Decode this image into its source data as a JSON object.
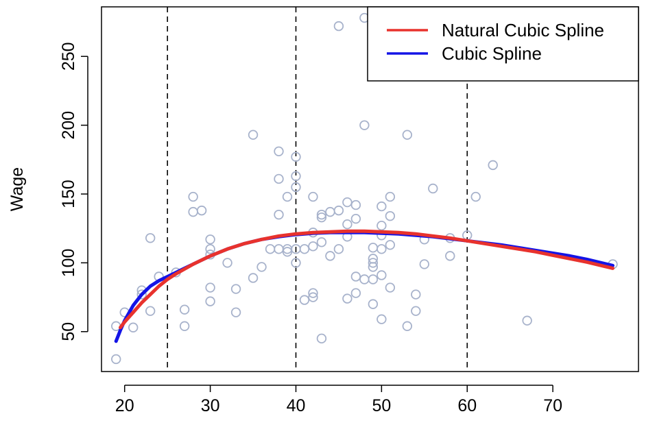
{
  "chart_data": {
    "type": "scatter",
    "title": "",
    "xlabel": "",
    "ylabel": "Wage",
    "xlim": [
      17.3,
      80
    ],
    "ylim": [
      21,
      286
    ],
    "x_ticks": [
      20,
      30,
      40,
      50,
      60,
      70
    ],
    "y_ticks": [
      50,
      100,
      150,
      200,
      250
    ],
    "knots": [
      25,
      40,
      60
    ],
    "grid": false,
    "legend_position": "top-right",
    "colors": {
      "points": "#a7b2cb",
      "natural_cubic_spline": "#e8322d",
      "cubic_spline": "#1414e6",
      "knot_lines": "#000000"
    },
    "points": [
      [
        19,
        30
      ],
      [
        19,
        54
      ],
      [
        20,
        64
      ],
      [
        21,
        53
      ],
      [
        22,
        80
      ],
      [
        22,
        77
      ],
      [
        23,
        65
      ],
      [
        23,
        118
      ],
      [
        24,
        90
      ],
      [
        26,
        93
      ],
      [
        27,
        66
      ],
      [
        27,
        54
      ],
      [
        28,
        148
      ],
      [
        28,
        137
      ],
      [
        29,
        138
      ],
      [
        30,
        117
      ],
      [
        30,
        110
      ],
      [
        30,
        106
      ],
      [
        30,
        82
      ],
      [
        30,
        72
      ],
      [
        32,
        100
      ],
      [
        33,
        81
      ],
      [
        33,
        64
      ],
      [
        35,
        193
      ],
      [
        35,
        89
      ],
      [
        36,
        97
      ],
      [
        37,
        110
      ],
      [
        38,
        181
      ],
      [
        38,
        161
      ],
      [
        38,
        135
      ],
      [
        38,
        110
      ],
      [
        39,
        148
      ],
      [
        39,
        110
      ],
      [
        39,
        108
      ],
      [
        40,
        177
      ],
      [
        40,
        163
      ],
      [
        40,
        155
      ],
      [
        40,
        110
      ],
      [
        40,
        100
      ],
      [
        41,
        110
      ],
      [
        41,
        73
      ],
      [
        42,
        148
      ],
      [
        42,
        122
      ],
      [
        42,
        112
      ],
      [
        42,
        78
      ],
      [
        42,
        75
      ],
      [
        43,
        135
      ],
      [
        43,
        133
      ],
      [
        43,
        115
      ],
      [
        43,
        45
      ],
      [
        44,
        137
      ],
      [
        44,
        105
      ],
      [
        45,
        272
      ],
      [
        45,
        138
      ],
      [
        45,
        110
      ],
      [
        46,
        144
      ],
      [
        46,
        128
      ],
      [
        46,
        119
      ],
      [
        46,
        74
      ],
      [
        47,
        142
      ],
      [
        47,
        132
      ],
      [
        47,
        90
      ],
      [
        47,
        78
      ],
      [
        48,
        278
      ],
      [
        48,
        200
      ],
      [
        48,
        88
      ],
      [
        49,
        111
      ],
      [
        49,
        103
      ],
      [
        49,
        100
      ],
      [
        49,
        97
      ],
      [
        49,
        88
      ],
      [
        49,
        70
      ],
      [
        50,
        141
      ],
      [
        50,
        127
      ],
      [
        50,
        120
      ],
      [
        50,
        110
      ],
      [
        50,
        91
      ],
      [
        50,
        59
      ],
      [
        51,
        282
      ],
      [
        51,
        148
      ],
      [
        51,
        134
      ],
      [
        51,
        113
      ],
      [
        51,
        82
      ],
      [
        53,
        193
      ],
      [
        53,
        54
      ],
      [
        54,
        77
      ],
      [
        54,
        65
      ],
      [
        55,
        117
      ],
      [
        55,
        99
      ],
      [
        56,
        154
      ],
      [
        58,
        118
      ],
      [
        58,
        105
      ],
      [
        60,
        120
      ],
      [
        61,
        148
      ],
      [
        63,
        171
      ],
      [
        67,
        58
      ],
      [
        77,
        99
      ]
    ],
    "series": [
      {
        "name": "Natural Cubic Spline",
        "x": [
          19.5,
          20,
          21,
          22,
          23,
          24,
          25,
          26,
          27,
          28,
          29,
          30,
          32,
          34,
          36,
          38,
          40,
          42,
          44,
          46,
          48,
          50,
          52,
          54,
          56,
          58,
          60,
          62,
          64,
          66,
          68,
          70,
          72,
          74,
          76,
          77
        ],
        "values": [
          53,
          57,
          64,
          71,
          77,
          83,
          88,
          92,
          95.5,
          99,
          102,
          105,
          110,
          114,
          117,
          119.5,
          121,
          122,
          122.5,
          123,
          123,
          122.5,
          122,
          121,
          119.5,
          118,
          116,
          114,
          112,
          110,
          108,
          105.5,
          103,
          100.5,
          97.5,
          96
        ]
      },
      {
        "name": "Cubic Spline",
        "x": [
          19,
          19.5,
          20,
          21,
          22,
          23,
          24,
          25,
          26,
          27,
          28,
          29,
          30,
          32,
          34,
          36,
          38,
          40,
          42,
          44,
          46,
          48,
          50,
          52,
          54,
          56,
          58,
          60,
          62,
          64,
          66,
          68,
          70,
          72,
          74,
          76,
          77
        ],
        "values": [
          43,
          51,
          58,
          69,
          77,
          83,
          87,
          90,
          93,
          96,
          99,
          102,
          105,
          110,
          114,
          117,
          119,
          120.5,
          121.5,
          122,
          122,
          122,
          121.5,
          121,
          120,
          119,
          117.5,
          116,
          114.5,
          113,
          111,
          109,
          107,
          105,
          102.5,
          99.5,
          98
        ]
      }
    ]
  }
}
